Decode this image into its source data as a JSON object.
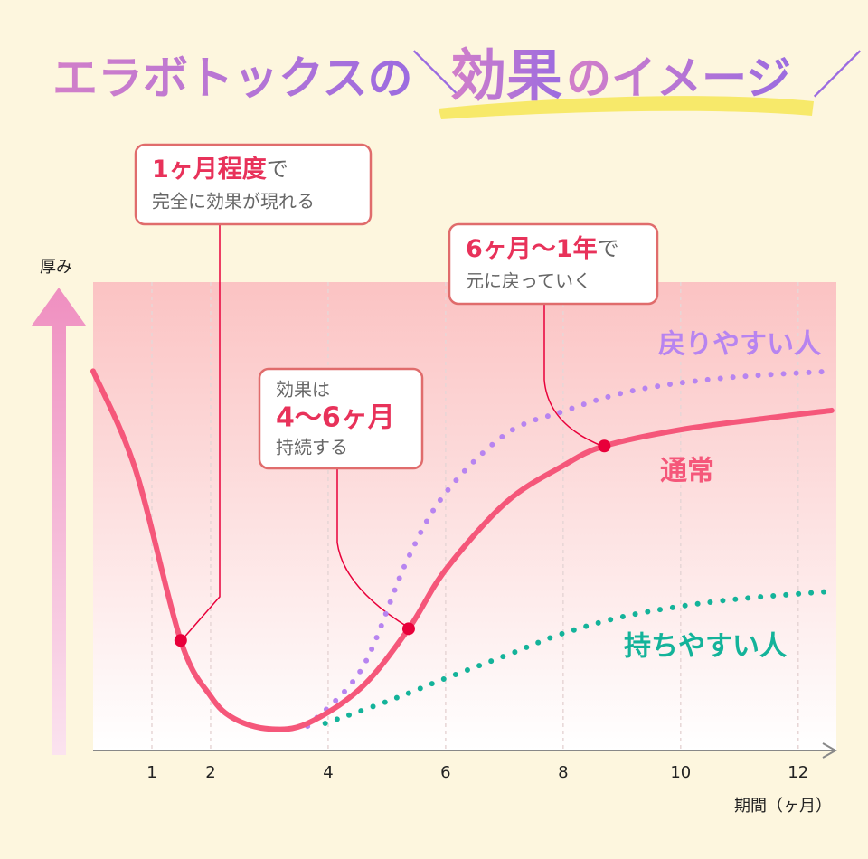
{
  "title": [
    "エラボトックスの",
    "効果",
    "のイメージ"
  ],
  "annotations": [
    {
      "highlight": "1ヶ月程度",
      "after": "で",
      "sub": "完全に効果が現れる"
    },
    {
      "before": "効果は",
      "highlight": "4〜6ヶ月",
      "sub": "持続する"
    },
    {
      "highlight": "6ヶ月〜1年",
      "after": "で",
      "sub": "元に戻っていく"
    }
  ],
  "chart_data": {
    "type": "line",
    "y_label": "厚み",
    "x_label": "期間（ヶ月）",
    "xlim": [
      0,
      12.65
    ],
    "ylim": [
      0,
      100
    ],
    "xticks": [
      1,
      2,
      4,
      6,
      8,
      10,
      12
    ],
    "grid": true,
    "series": [
      {
        "name": "通常",
        "color": "#f5577a",
        "style": "solid",
        "x": [
          0,
          0.72,
          1.49,
          2,
          2.4,
          3,
          3.65,
          4.57,
          5.37,
          6,
          7.03,
          8,
          8.7,
          10,
          11.5,
          12.57
        ],
        "values": [
          81,
          60,
          23.5,
          11.6,
          6.8,
          4.6,
          5.8,
          13.5,
          26,
          38.6,
          53,
          60.8,
          65,
          68.5,
          71,
          72.6
        ]
      },
      {
        "name": "戻りやすい人",
        "color": "#b784f0",
        "style": "dotted",
        "x": [
          3.65,
          4.57,
          5.34,
          6,
          7.03,
          8,
          9.18,
          10.72,
          12.57
        ],
        "values": [
          5.2,
          17.4,
          40.5,
          55,
          67.6,
          72.4,
          76.8,
          79.5,
          81
        ]
      },
      {
        "name": "持ちやすい人",
        "color": "#14b39a",
        "style": "dotted",
        "x": [
          3.95,
          5.03,
          6,
          7.03,
          8,
          9.18,
          10.72,
          12.57
        ],
        "values": [
          5.8,
          10.6,
          15.4,
          20.3,
          25,
          29,
          32,
          34
        ]
      }
    ]
  }
}
